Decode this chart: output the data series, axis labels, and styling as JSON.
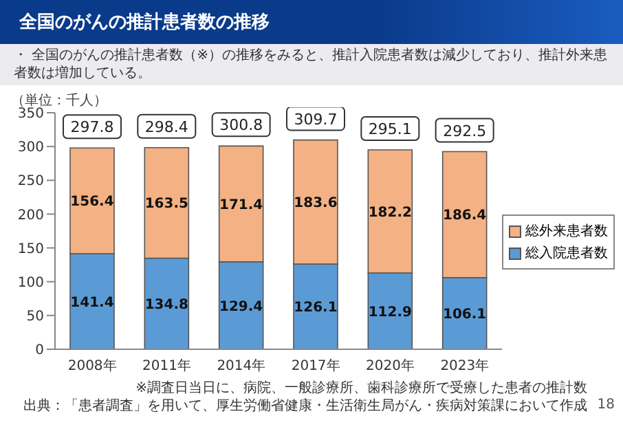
{
  "chart_data": {
    "type": "bar",
    "title": "全国のがんの推計患者数の推移",
    "subtitle": "・ 全国のがんの推計患者数（※）の推移をみると、推計入院患者数は減少しており、推計外来患者数は増加している。",
    "ylabel": "（単位：千人）",
    "categories": [
      "2008年",
      "2011年",
      "2014年",
      "2017年",
      "2020年",
      "2023年"
    ],
    "series": [
      {
        "name": "総入院患者数",
        "color": "#5b9bd5",
        "values": [
          141.4,
          134.8,
          129.4,
          126.1,
          112.9,
          106.1
        ]
      },
      {
        "name": "総外来患者数",
        "color": "#f4b183",
        "values": [
          156.4,
          163.5,
          171.4,
          183.6,
          182.2,
          186.4
        ]
      }
    ],
    "stacked": true,
    "data_labels": true,
    "totals": [
      "297.8",
      "298.4",
      "300.8",
      "309.7",
      "295.1",
      "292.5"
    ],
    "ylim": [
      0,
      350
    ],
    "yticks": [
      0,
      50,
      100,
      150,
      200,
      250,
      300,
      350
    ],
    "legend": "right",
    "annotations": [
      "※調査日当日に、病院、一般診療所、歯科診療所で受療した患者の推計数",
      "出典：「患者調査」を用いて、厚生労働省健康・生活衛生局がん・疾病対策課において作成",
      "18"
    ]
  }
}
